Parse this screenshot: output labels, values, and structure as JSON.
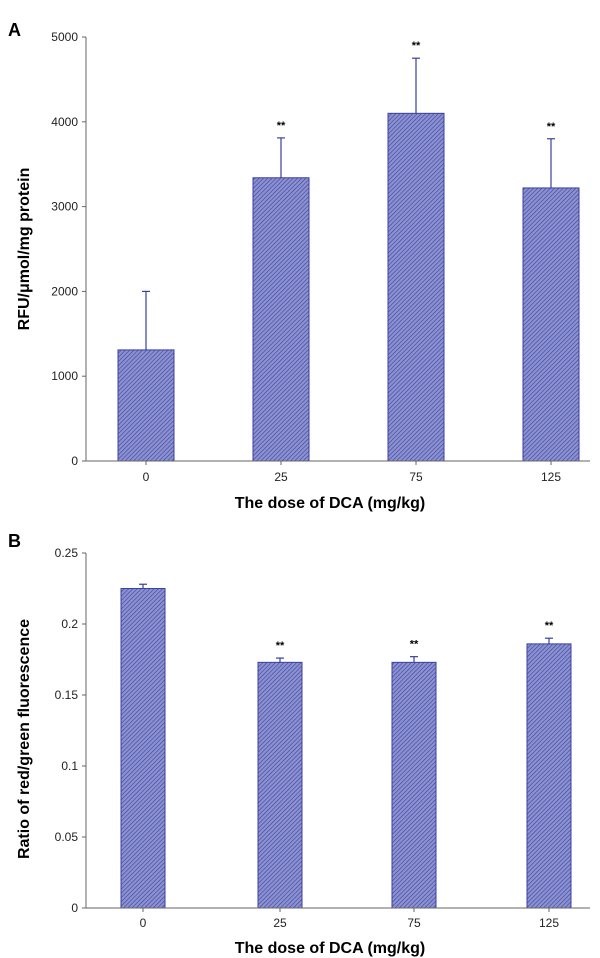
{
  "figure": {
    "panels": [
      {
        "letter": "A"
      },
      {
        "letter": "B"
      }
    ]
  },
  "colors": {
    "bar_fill": "#8c92cf",
    "bar_hatch": "#3a3fa0",
    "bar_stroke": "#3a3fa0",
    "error_bar": "#3a3fa0"
  },
  "chart_data": [
    {
      "type": "bar",
      "panel": "A",
      "categories": [
        "0",
        "25",
        "75",
        "125"
      ],
      "values": [
        1310,
        3340,
        4100,
        3220
      ],
      "errors": [
        690,
        470,
        650,
        580
      ],
      "significance": [
        "",
        "**",
        "**",
        "**"
      ],
      "xlabel": "The dose of DCA (mg/kg)",
      "ylabel": "RFU/μmol/mg protein",
      "ylim": [
        0,
        5000
      ],
      "yticks": [
        0,
        1000,
        2000,
        3000,
        4000,
        5000
      ],
      "ytick_labels": [
        "0",
        "1000",
        "2000",
        "3000",
        "4000",
        "5000"
      ],
      "grid": false,
      "bar_style": "hatched"
    },
    {
      "type": "bar",
      "panel": "B",
      "categories": [
        "0",
        "25",
        "75",
        "125"
      ],
      "values": [
        0.225,
        0.173,
        0.173,
        0.186
      ],
      "errors": [
        0.003,
        0.003,
        0.004,
        0.004
      ],
      "significance": [
        "",
        "**",
        "**",
        "**"
      ],
      "xlabel": "The dose of DCA (mg/kg)",
      "ylabel": "Ratio of red/green fluorescence",
      "ylim": [
        0,
        0.25
      ],
      "yticks": [
        0,
        0.05,
        0.1,
        0.15,
        0.2,
        0.25
      ],
      "ytick_labels": [
        "0",
        "0.05",
        "0.1",
        "0.15",
        "0.2",
        "0.25"
      ],
      "grid": false,
      "bar_style": "hatched"
    }
  ]
}
